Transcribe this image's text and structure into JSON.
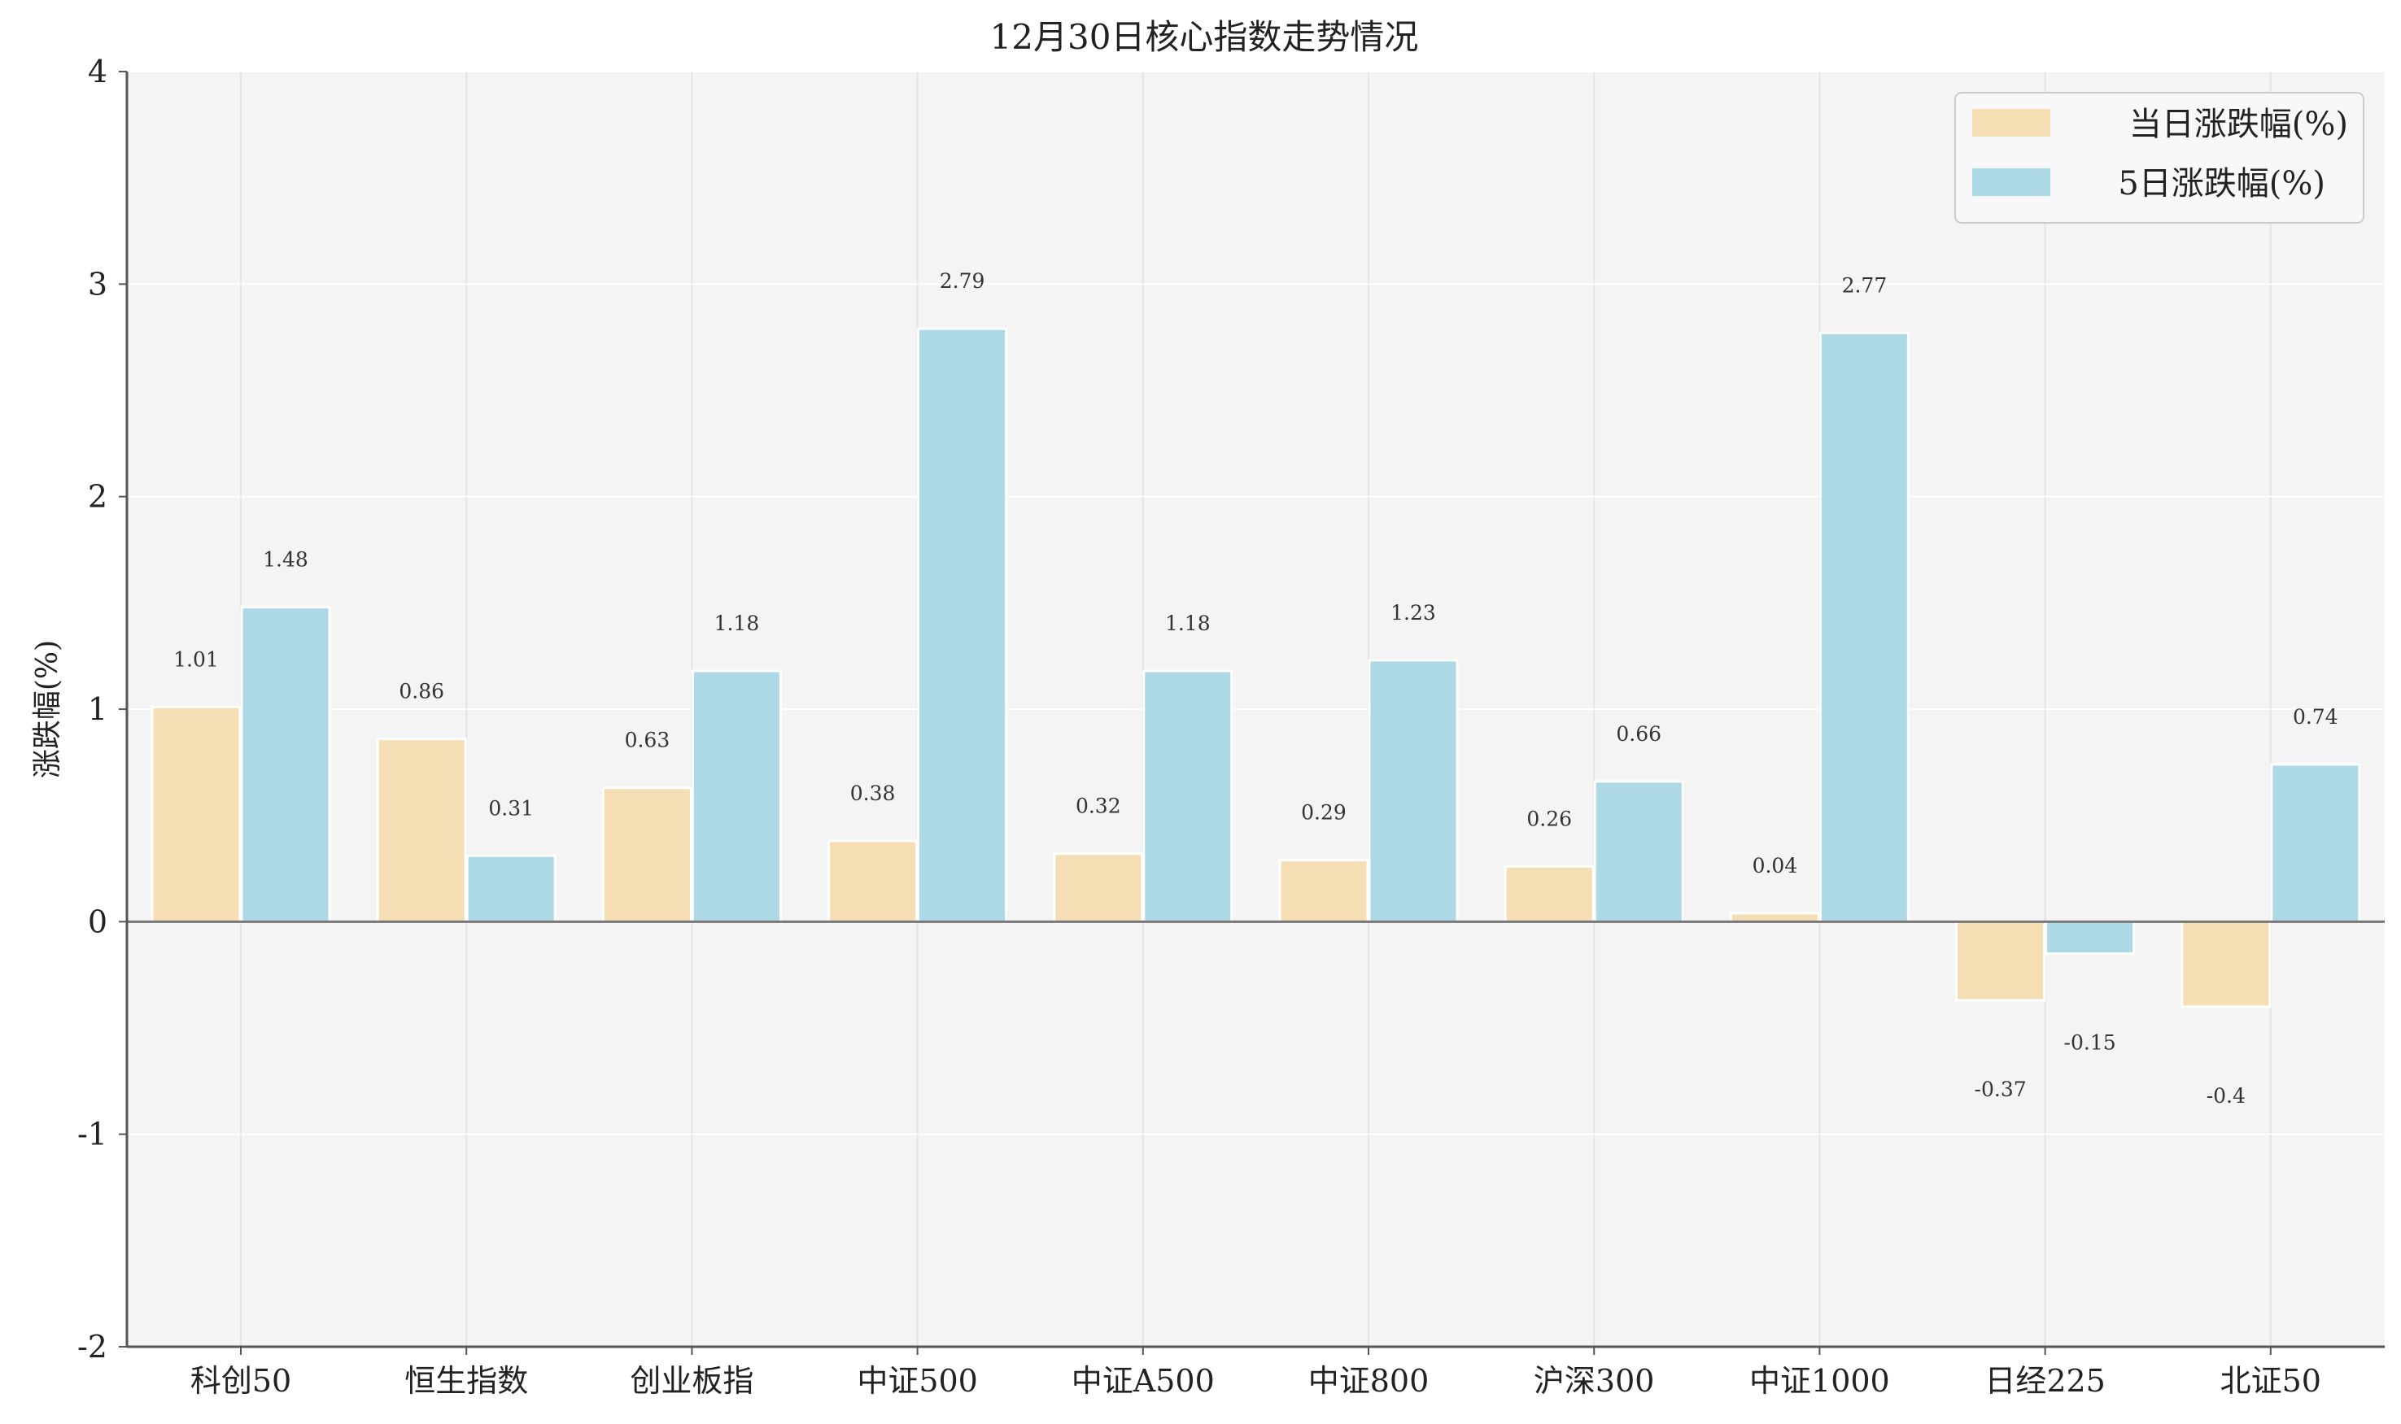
{
  "chart_data": {
    "type": "bar",
    "title": "12月30日核心指数走势情况",
    "ylabel": "涨跌幅(%)",
    "xlabel": "",
    "categories": [
      "科创50",
      "恒生指数",
      "创业板指",
      "中证500",
      "中证A500",
      "中证800",
      "沪深300",
      "中证1000",
      "日经225",
      "北证50"
    ],
    "series": [
      {
        "name": "当日涨跌幅(%)",
        "color": "#F5DEB3",
        "values": [
          1.01,
          0.86,
          0.63,
          0.38,
          0.32,
          0.29,
          0.26,
          0.04,
          -0.37,
          -0.4
        ],
        "labels": [
          "1.01",
          "0.86",
          "0.63",
          "0.38",
          "0.32",
          "0.29",
          "0.26",
          "0.04",
          "-0.37",
          "-0.4"
        ]
      },
      {
        "name": "5日涨跌幅(%)",
        "color": "#ADD8E6",
        "values": [
          1.48,
          0.31,
          1.18,
          2.79,
          1.18,
          1.23,
          0.66,
          2.77,
          -0.15,
          0.74
        ],
        "labels": [
          "1.48",
          "0.31",
          "1.18",
          "2.79",
          "1.18",
          "1.23",
          "0.66",
          "2.77",
          "-0.15",
          "0.74"
        ]
      }
    ],
    "ylim": [
      -2,
      4
    ],
    "yticks": [
      -2,
      -1,
      0,
      1,
      2,
      3,
      4
    ],
    "ytick_labels": [
      "-2",
      "-1",
      "0",
      "1",
      "2",
      "3",
      "4"
    ],
    "grid": true,
    "legend_position": "top-right",
    "plot_background": "#F4F4F4",
    "grid_color": "#FFFFFF",
    "zero_line_color": "#777777"
  }
}
